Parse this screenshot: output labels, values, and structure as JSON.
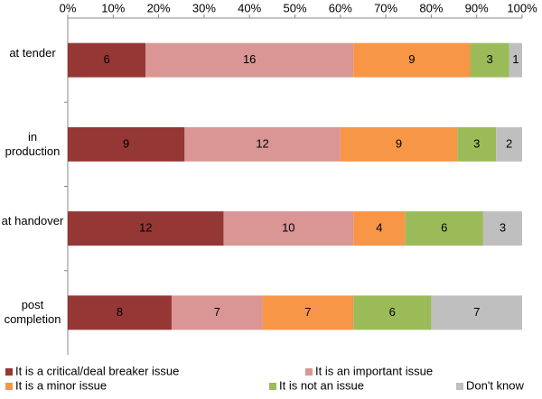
{
  "chart_data": {
    "type": "bar",
    "orientation": "horizontal",
    "stacking": "percent",
    "categories": [
      "at tender",
      "in production",
      "at handover",
      "post completion"
    ],
    "series": [
      {
        "name": "It is a critical/deal breaker issue",
        "color": "#953735",
        "values": [
          6,
          9,
          12,
          8
        ]
      },
      {
        "name": "It is an important issue",
        "color": "#d99694",
        "values": [
          16,
          12,
          10,
          7
        ]
      },
      {
        "name": "It is a minor issue",
        "color": "#f79646",
        "values": [
          9,
          9,
          4,
          7
        ]
      },
      {
        "name": "It is not an issue",
        "color": "#9bbb59",
        "values": [
          3,
          3,
          6,
          6
        ]
      },
      {
        "name": "Don't know",
        "color": "#bfbfbf",
        "values": [
          1,
          2,
          3,
          7
        ]
      }
    ],
    "xlim": [
      0,
      100
    ],
    "xticks": [
      {
        "value": 0,
        "label": "0%"
      },
      {
        "value": 10,
        "label": "10%"
      },
      {
        "value": 20,
        "label": "20%"
      },
      {
        "value": 30,
        "label": "30%"
      },
      {
        "value": 40,
        "label": "40%"
      },
      {
        "value": 50,
        "label": "50%"
      },
      {
        "value": 60,
        "label": "60%"
      },
      {
        "value": 70,
        "label": "70%"
      },
      {
        "value": 80,
        "label": "80%"
      },
      {
        "value": 90,
        "label": "90%"
      },
      {
        "value": 100,
        "label": "100%"
      }
    ],
    "legend": "bottom"
  }
}
